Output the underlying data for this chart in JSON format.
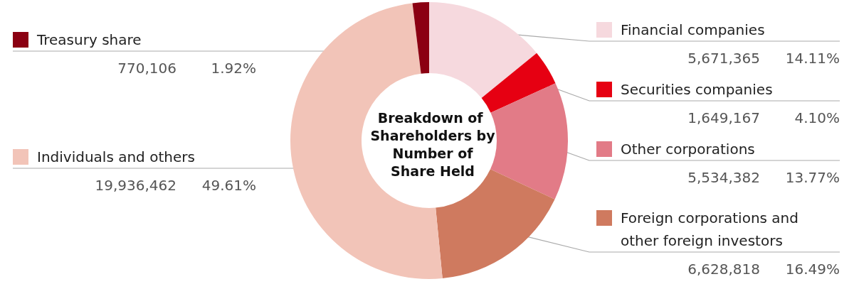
{
  "chart_data": {
    "type": "donut",
    "title": "Breakdown of Shareholders by Number of Share Held",
    "categories": [
      "Financial companies",
      "Securities companies",
      "Other corporations",
      "Foreign corporations and other foreign investors",
      "Individuals and others",
      "Treasury share"
    ],
    "values": [
      14.11,
      4.1,
      13.77,
      16.49,
      49.61,
      1.92
    ],
    "value_labels": [
      "14.11%",
      "4.10%",
      "13.77%",
      "16.49%",
      "49.61%",
      "1.92%"
    ],
    "annotations": [
      "5,671,365",
      "1,649,167",
      "5,534,382",
      "6,628,818",
      "19,936,462",
      "770,106"
    ],
    "colors": [
      "#f6d9de",
      "#e60012",
      "#e27b87",
      "#cf7a5f",
      "#f2c4b8",
      "#8b0012"
    ],
    "legend": "top left"
  }
}
